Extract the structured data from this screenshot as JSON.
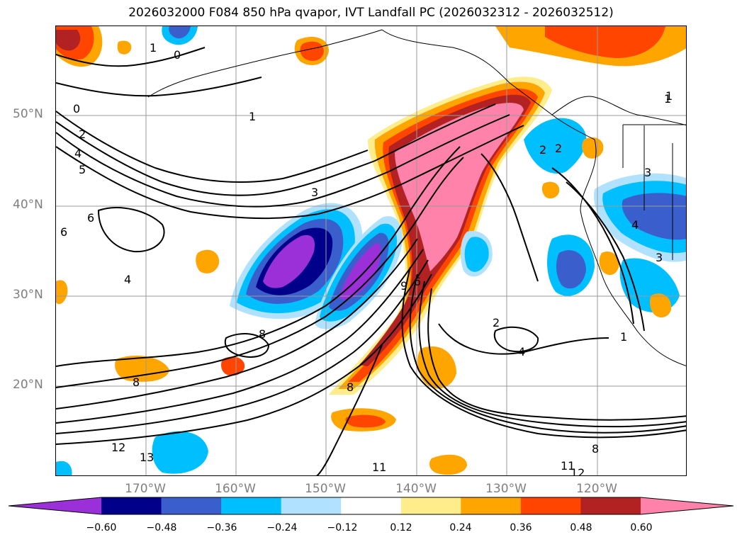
{
  "title": "2026032000 F084 850 hPa qvapor, IVT Landfall PC (2026032312 - 2026032512)",
  "map": {
    "lat_labels": [
      "50°N",
      "40°N",
      "30°N",
      "20°N"
    ],
    "lon_labels": [
      "170°W",
      "160°W",
      "150°W",
      "140°W",
      "130°W",
      "120°W"
    ],
    "contour_labels": [
      "1",
      "0",
      "1",
      "0",
      "2",
      "4",
      "5",
      "6",
      "6",
      "4",
      "3",
      "2",
      "2",
      "1",
      "4",
      "8",
      "8",
      "8",
      "9",
      "6",
      "12",
      "13",
      "11",
      "11",
      "12",
      "8",
      "3",
      "2",
      "4",
      "3",
      "1",
      "1"
    ],
    "colors": {
      "frame": "#000000",
      "grid": "#9a9a9a",
      "axis_label": "#7f7f7f"
    }
  },
  "colorbar": {
    "ticks": [
      "−0.60",
      "−0.48",
      "−0.36",
      "−0.24",
      "−0.12",
      "0.12",
      "0.24",
      "0.36",
      "0.48",
      "0.60"
    ],
    "colors": [
      "#9b30d9",
      "#00008b",
      "#3a5fcd",
      "#00bfff",
      "#b0e2ff",
      "#ffffff",
      "#ffec8b",
      "#ffa500",
      "#ff4500",
      "#b22222",
      "#ff82ab"
    ]
  }
}
